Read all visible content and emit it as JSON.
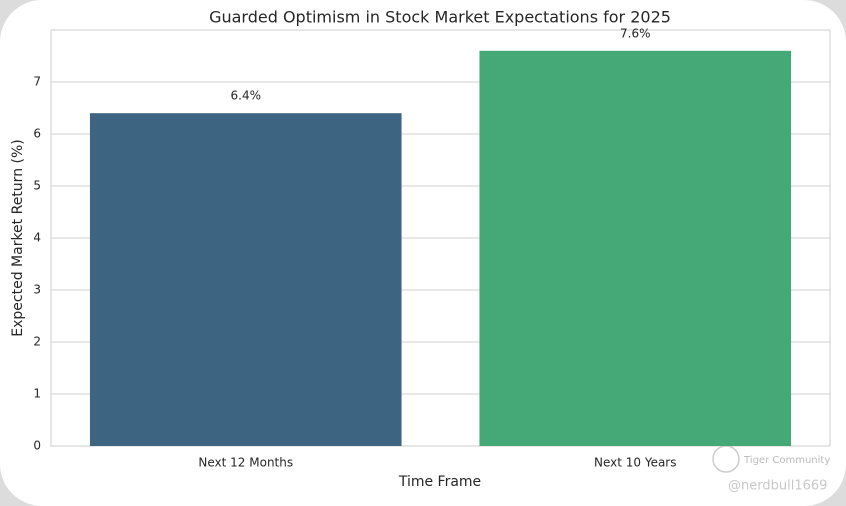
{
  "chart_data": {
    "type": "bar",
    "title": "Guarded Optimism in Stock Market Expectations for 2025",
    "x_label": "Time Frame",
    "y_label": "Expected Market Return (%)",
    "categories": [
      "Next 12 Months",
      "Next 10 Years"
    ],
    "values": [
      6.4,
      7.6
    ],
    "value_labels": [
      "6.4%",
      "7.6%"
    ],
    "colors": [
      "#3d6480",
      "#45a877"
    ],
    "ylim": [
      0,
      8
    ],
    "yticks": [
      0,
      1,
      2,
      3,
      4,
      5,
      6,
      7
    ],
    "grid": true
  },
  "watermark": {
    "brand": "Tiger Community",
    "handle": "@nerdbull1669"
  }
}
